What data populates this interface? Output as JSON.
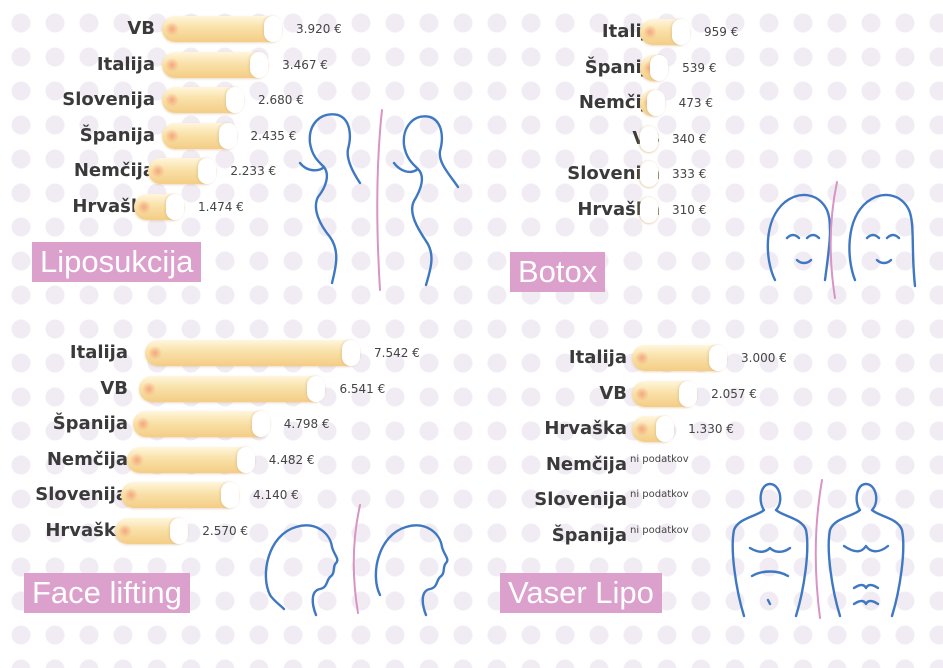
{
  "chart_data": [
    {
      "type": "bar",
      "title": "Liposukcija",
      "categories": [
        "VB",
        "Italija",
        "Slovenija",
        "Španija",
        "Nemčija",
        "Hrvaška"
      ],
      "values": [
        3920,
        3467,
        2680,
        2435,
        2233,
        1474
      ],
      "value_labels": [
        "3.920 €",
        "3.467 €",
        "2.680 €",
        "2.435 €",
        "2.233 €",
        "1.474 €"
      ]
    },
    {
      "type": "bar",
      "title": "Botox",
      "categories": [
        "Italija",
        "Španija",
        "Nemčija",
        "VB",
        "Slovenija",
        "Hrvaška"
      ],
      "values": [
        959,
        539,
        473,
        340,
        333,
        310
      ],
      "value_labels": [
        "959 €",
        "539 €",
        "473 €",
        "340 €",
        "333 €",
        "310 €"
      ]
    },
    {
      "type": "bar",
      "title": "Face lifting",
      "categories": [
        "Italija",
        "VB",
        "Španija",
        "Nemčija",
        "Slovenija",
        "Hrvaška"
      ],
      "values": [
        7542,
        6541,
        4798,
        4482,
        4140,
        2570
      ],
      "value_labels": [
        "7.542 €",
        "6.541 €",
        "4.798 €",
        "4.482 €",
        "4.140 €",
        "2.570 €"
      ]
    },
    {
      "type": "bar",
      "title": "Vaser Lipo",
      "categories": [
        "Italija",
        "VB",
        "Hrvaška",
        "Nemčija",
        "Slovenija",
        "Španija"
      ],
      "values": [
        3000,
        2057,
        1330,
        null,
        null,
        null
      ],
      "value_labels": [
        "3.000 €",
        "2.057 €",
        "1.330 €",
        "ni podatkov",
        "ni podatkov",
        "ni podatkov"
      ]
    }
  ],
  "colors": {
    "bar_fill": "#f9e1a8",
    "title_badge": "#dca0cc",
    "figure_outline": "#3f78c2",
    "divider": "#d894c4"
  },
  "icons": [
    "woman-silhouette-before-icon",
    "woman-silhouette-after-icon",
    "face-before-icon",
    "face-after-icon",
    "profile-before-icon",
    "profile-after-icon",
    "male-torso-before-icon",
    "male-torso-after-icon"
  ]
}
